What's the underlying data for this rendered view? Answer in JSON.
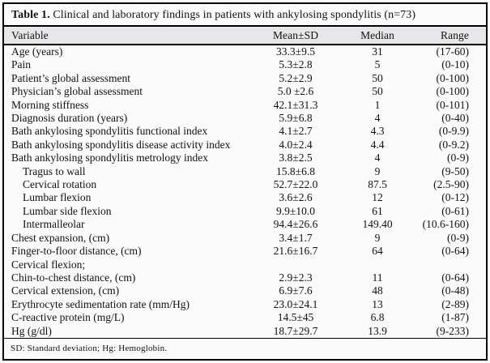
{
  "table": {
    "title": {
      "prefix": "Table 1.",
      "rest": " Clinical and laboratory findings in patients with ankylosing spondylitis (n=73)"
    },
    "columns": {
      "variable": "Variable",
      "mean_sd": "Mean±SD",
      "median": "Median",
      "range": "Range"
    },
    "rows": [
      {
        "label": "Age (years)",
        "indent": false,
        "mean_sd": "33.3±9.5",
        "median": "31",
        "range": "(17-60)"
      },
      {
        "label": "Pain",
        "indent": false,
        "mean_sd": "5.3±2.8",
        "median": "5",
        "range": "(0-10)"
      },
      {
        "label": "Patient’s global assessment",
        "indent": false,
        "mean_sd": "5.2±2.9",
        "median": "50",
        "range": "(0-100)"
      },
      {
        "label": "Physician’s global assessment",
        "indent": false,
        "mean_sd": "5.0 ±2.6",
        "median": "50",
        "range": "(0-100)"
      },
      {
        "label": "Morning stiffness",
        "indent": false,
        "mean_sd": "42.1±31.3",
        "median": "1",
        "range": "(0-101)"
      },
      {
        "label": "Diagnosis duration (years)",
        "indent": false,
        "mean_sd": "5.9±6.8",
        "median": "4",
        "range": "(0-40)"
      },
      {
        "label": "Bath ankylosing spondylitis functional index",
        "indent": false,
        "mean_sd": "4.1±2.7",
        "median": "4.3",
        "range": "(0-9.9)"
      },
      {
        "label": "Bath ankylosing spondylitis disease activity index",
        "indent": false,
        "mean_sd": "4.0±2.4",
        "median": "4.4",
        "range": "(0-9.2)"
      },
      {
        "label": "Bath ankylosing spondylitis metrology index",
        "indent": false,
        "mean_sd": "3.8±2.5",
        "median": "4",
        "range": "(0-9)"
      },
      {
        "label": "Tragus to wall",
        "indent": true,
        "mean_sd": "15.8±6.8",
        "median": "9",
        "range": "(9-50)"
      },
      {
        "label": "Cervical rotation",
        "indent": true,
        "mean_sd": "52.7±22.0",
        "median": "87.5",
        "range": "(2.5-90)"
      },
      {
        "label": "Lumbar flexion",
        "indent": true,
        "mean_sd": "3.6±2.6",
        "median": "12",
        "range": "(0-12)"
      },
      {
        "label": "Lumbar side flexion",
        "indent": true,
        "mean_sd": "9.9±10.0",
        "median": "61",
        "range": "(0-61)"
      },
      {
        "label": "Intermalleolar",
        "indent": true,
        "mean_sd": "94.4±26.6",
        "median": "149.40",
        "range": "(10.6-160)"
      },
      {
        "label": "Chest expansion, (cm)",
        "indent": false,
        "mean_sd": "3.4±1.7",
        "median": "9",
        "range": "(0-9)"
      },
      {
        "label": "Finger-to-floor distance, (cm)",
        "indent": false,
        "mean_sd": "21.6±16.7",
        "median": "64",
        "range": "(0-64)"
      },
      {
        "label": "Cervical flexion;",
        "indent": false,
        "mean_sd": "",
        "median": "",
        "range": ""
      },
      {
        "label": "Chin-to-chest distance, (cm)",
        "indent": false,
        "mean_sd": "2.9±2.3",
        "median": "11",
        "range": "(0-64)"
      },
      {
        "label": "Cervical extension, (cm)",
        "indent": false,
        "mean_sd": "6.9±7.6",
        "median": "48",
        "range": "(0-48)"
      },
      {
        "label": "Erythrocyte sedimentation rate (mm/Hg)",
        "indent": false,
        "mean_sd": "23.0±24.1",
        "median": "13",
        "range": "(2-89)"
      },
      {
        "label": "C-reactive protein (mg/L)",
        "indent": false,
        "mean_sd": "14.5±45",
        "median": "6.8",
        "range": "(1-87)"
      },
      {
        "label": "Hg (g/dl)",
        "indent": false,
        "mean_sd": "18.7±29.7",
        "median": "13.9",
        "range": "(9-233)"
      }
    ],
    "footnote": "SD: Standard deviation; Hg: Hemoglobin.",
    "colors": {
      "header_bg": "#e7e7e9",
      "rule": "#000000",
      "background": "#fbfbfc"
    }
  }
}
